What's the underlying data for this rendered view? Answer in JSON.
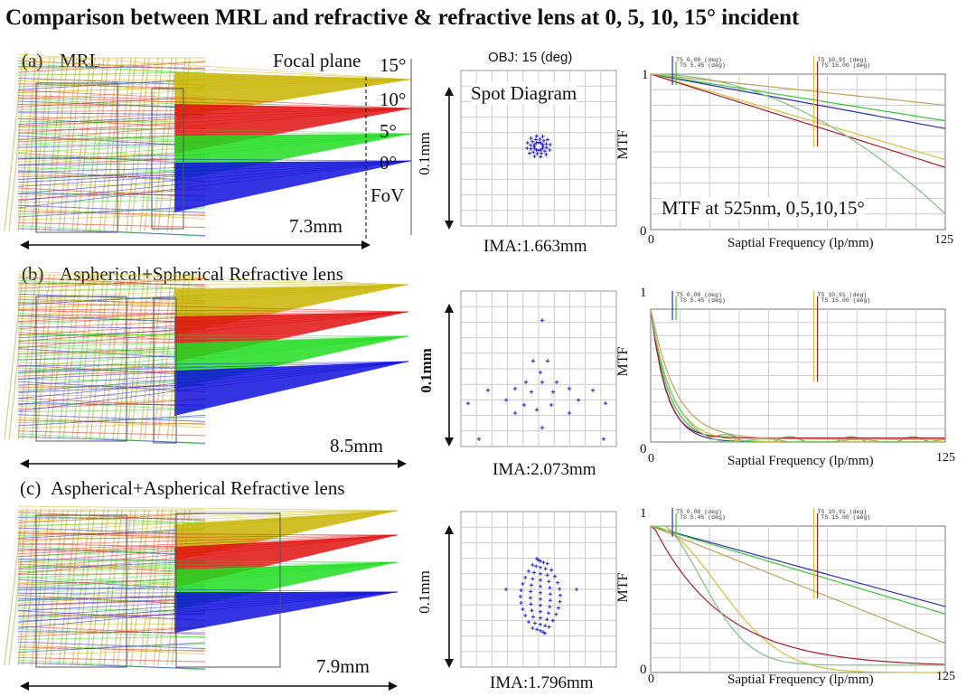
{
  "title": "Comparison between MRL and refractive & refractive lens at 0, 5, 10, 15° incident",
  "panels": [
    {
      "tag": "(a)",
      "name": "MRL",
      "length": "7.3mm",
      "focal_plane_label": "Focal plane",
      "fov_label": "FoV",
      "angles": [
        "15°",
        "10°",
        "5°",
        "0°"
      ],
      "spot": {
        "header": "OBJ: 15 (deg)",
        "title": "Spot Diagram",
        "scale": "0.1mm",
        "ima": "IMA:1.663mm"
      },
      "mtf": {
        "ylabel": "MTF",
        "xlabel": "Saptial Frequency (lp/mm)",
        "x_min": "0",
        "x_max": "125",
        "y_min": "0",
        "y_max": "1",
        "annotation": "MTF at 525nm, 0,5,10,15°",
        "legend_left": [
          "TS 0.00 (deg)",
          "TS 5.45 (deg)"
        ],
        "legend_right": [
          "TS 10.91 (deg)",
          "TS 15.00 (deg)"
        ]
      }
    },
    {
      "tag": "(b)",
      "name": "Aspherical+Spherical Refractive lens",
      "length": "8.5mm",
      "spot": {
        "scale": "0.1mm",
        "ima": "IMA:2.073mm"
      },
      "mtf": {
        "ylabel": "MTF",
        "xlabel": "Saptial Frequency (lp/mm)",
        "x_min": "0",
        "x_max": "125",
        "y_min": "0",
        "y_max": "1",
        "legend_left": [
          "TS 0.00 (deg)",
          "TS 5.45 (deg)"
        ],
        "legend_right": [
          "TS 10.91 (deg)",
          "TS 15.00 (deg)"
        ]
      }
    },
    {
      "tag": "(c)",
      "name": "Aspherical+Aspherical Refractive lens",
      "length": "7.9mm",
      "spot": {
        "scale": "0.1mm",
        "ima": "IMA:1.796mm"
      },
      "mtf": {
        "ylabel": "MTF",
        "xlabel": "Saptial Frequency (lp/mm)",
        "x_min": "0",
        "x_max": "125",
        "y_min": "0",
        "y_max": "1",
        "legend_left": [
          "TS 0.00 (deg)",
          "TS 5.45 (deg)"
        ],
        "legend_right": [
          "TS 10.91 (deg)",
          "TS 15.00 (deg)"
        ]
      }
    }
  ],
  "colors": {
    "beam_15": "#c8b400",
    "beam_10": "#e01010",
    "beam_5": "#22dd22",
    "beam_0": "#1010dd",
    "spot": "#2222cc",
    "grid": "#cccccc"
  }
}
